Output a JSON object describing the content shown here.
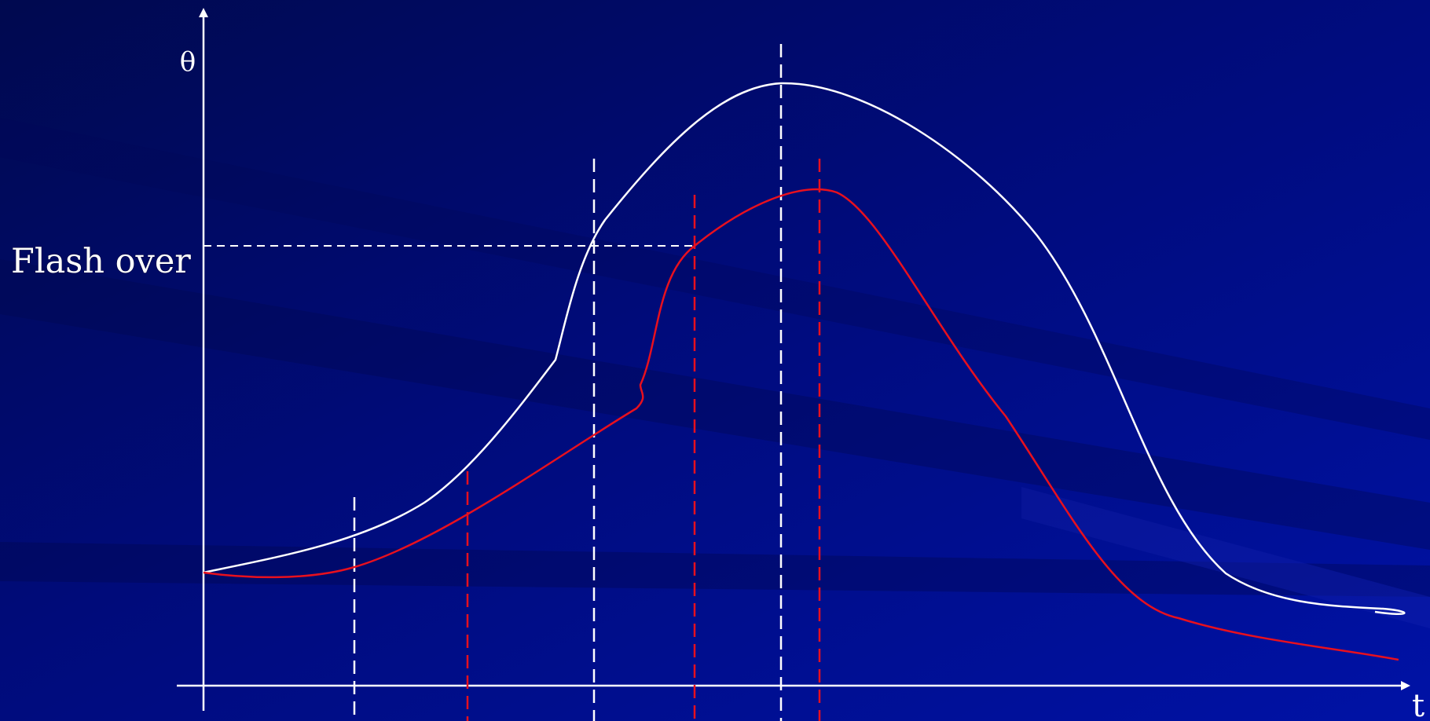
{
  "diagram": {
    "y_axis_label": "θ",
    "x_axis_label": "t",
    "threshold_label": "Flash over"
  },
  "colors": {
    "background": "#000e80",
    "curve_white": "#ffffff",
    "curve_red": "#e8101e",
    "axis": "#ffffff"
  }
}
